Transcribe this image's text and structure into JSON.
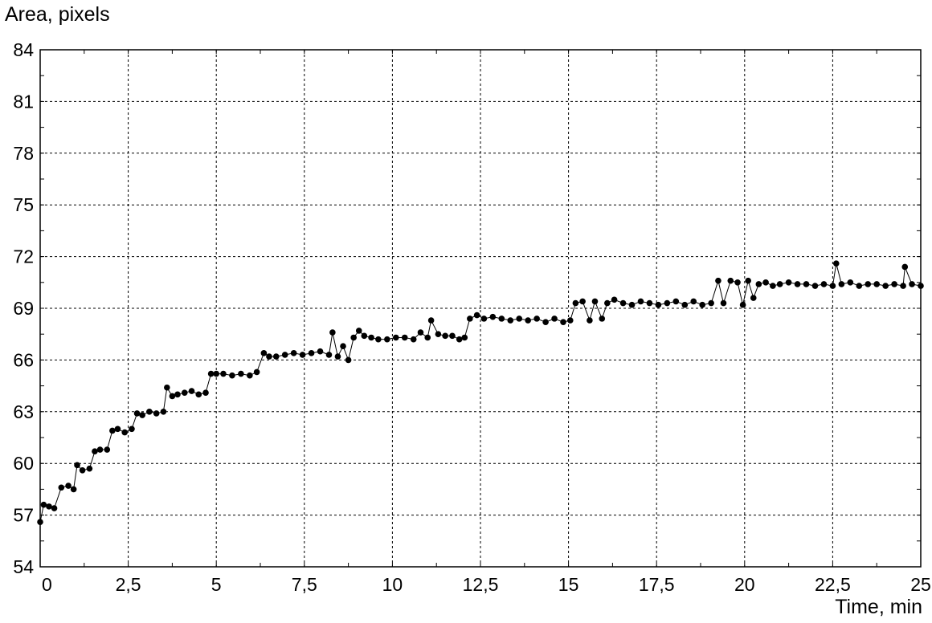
{
  "chart_data": {
    "type": "scatter",
    "title": "",
    "xlabel": "Time, min",
    "ylabel": "Area, pixels",
    "xlim": [
      0,
      25
    ],
    "ylim": [
      54,
      84
    ],
    "grid": true,
    "marker_color": "#000000",
    "line_color": "#000000",
    "x_ticks": [
      0,
      2.5,
      5,
      7.5,
      10,
      12.5,
      15,
      17.5,
      20,
      22.5,
      25
    ],
    "x_tick_labels": [
      "0",
      "2,5",
      "5",
      "7,5",
      "10",
      "12,5",
      "15",
      "17,5",
      "20",
      "22,5",
      "25"
    ],
    "y_ticks": [
      54,
      57,
      60,
      63,
      66,
      69,
      72,
      75,
      78,
      81,
      84
    ],
    "y_tick_labels": [
      "54",
      "57",
      "60",
      "63",
      "66",
      "69",
      "72",
      "75",
      "78",
      "81",
      "84"
    ],
    "series": [
      {
        "x": [
          0.0,
          0.1,
          0.25,
          0.4,
          0.6,
          0.8,
          0.95,
          1.05,
          1.2,
          1.4,
          1.55,
          1.7,
          1.9,
          2.05,
          2.2,
          2.4,
          2.6,
          2.75,
          2.9,
          3.1,
          3.3,
          3.5,
          3.6,
          3.75,
          3.9,
          4.1,
          4.3,
          4.5,
          4.7,
          4.85,
          5.0,
          5.2,
          5.45,
          5.7,
          5.95,
          6.15,
          6.35,
          6.5,
          6.7,
          6.95,
          7.2,
          7.45,
          7.7,
          7.95,
          8.2,
          8.3,
          8.45,
          8.6,
          8.75,
          8.9,
          9.05,
          9.2,
          9.4,
          9.6,
          9.85,
          10.1,
          10.35,
          10.6,
          10.8,
          11.0,
          11.1,
          11.3,
          11.5,
          11.7,
          11.9,
          12.05,
          12.2,
          12.4,
          12.6,
          12.85,
          13.1,
          13.35,
          13.6,
          13.85,
          14.1,
          14.35,
          14.6,
          14.85,
          15.05,
          15.2,
          15.4,
          15.6,
          15.75,
          15.95,
          16.1,
          16.3,
          16.55,
          16.8,
          17.05,
          17.3,
          17.55,
          17.8,
          18.05,
          18.3,
          18.55,
          18.8,
          19.05,
          19.25,
          19.4,
          19.6,
          19.8,
          19.95,
          20.1,
          20.25,
          20.4,
          20.6,
          20.8,
          21.0,
          21.25,
          21.5,
          21.75,
          22.0,
          22.25,
          22.5,
          22.6,
          22.75,
          23.0,
          23.25,
          23.5,
          23.75,
          24.0,
          24.25,
          24.5,
          24.55,
          24.75,
          25.0
        ],
        "y": [
          56.6,
          57.6,
          57.5,
          57.4,
          58.6,
          58.7,
          58.5,
          59.9,
          59.6,
          59.7,
          60.7,
          60.8,
          60.8,
          61.9,
          62.0,
          61.8,
          62.0,
          62.9,
          62.8,
          63.0,
          62.9,
          63.0,
          64.4,
          63.9,
          64.0,
          64.1,
          64.2,
          64.0,
          64.1,
          65.2,
          65.2,
          65.2,
          65.1,
          65.2,
          65.1,
          65.3,
          66.4,
          66.2,
          66.2,
          66.3,
          66.4,
          66.3,
          66.4,
          66.5,
          66.3,
          67.6,
          66.2,
          66.8,
          66.0,
          67.3,
          67.7,
          67.4,
          67.3,
          67.2,
          67.2,
          67.3,
          67.3,
          67.2,
          67.6,
          67.3,
          68.3,
          67.5,
          67.4,
          67.4,
          67.2,
          67.3,
          68.4,
          68.6,
          68.4,
          68.5,
          68.4,
          68.3,
          68.4,
          68.3,
          68.4,
          68.2,
          68.4,
          68.2,
          68.3,
          69.3,
          69.4,
          68.3,
          69.4,
          68.4,
          69.3,
          69.5,
          69.3,
          69.2,
          69.4,
          69.3,
          69.2,
          69.3,
          69.4,
          69.2,
          69.4,
          69.2,
          69.3,
          70.6,
          69.3,
          70.6,
          70.5,
          69.2,
          70.6,
          69.6,
          70.4,
          70.5,
          70.3,
          70.4,
          70.5,
          70.4,
          70.4,
          70.3,
          70.4,
          70.3,
          71.6,
          70.4,
          70.5,
          70.3,
          70.4,
          70.4,
          70.3,
          70.4,
          70.3,
          71.4,
          70.4,
          70.3
        ]
      }
    ]
  }
}
